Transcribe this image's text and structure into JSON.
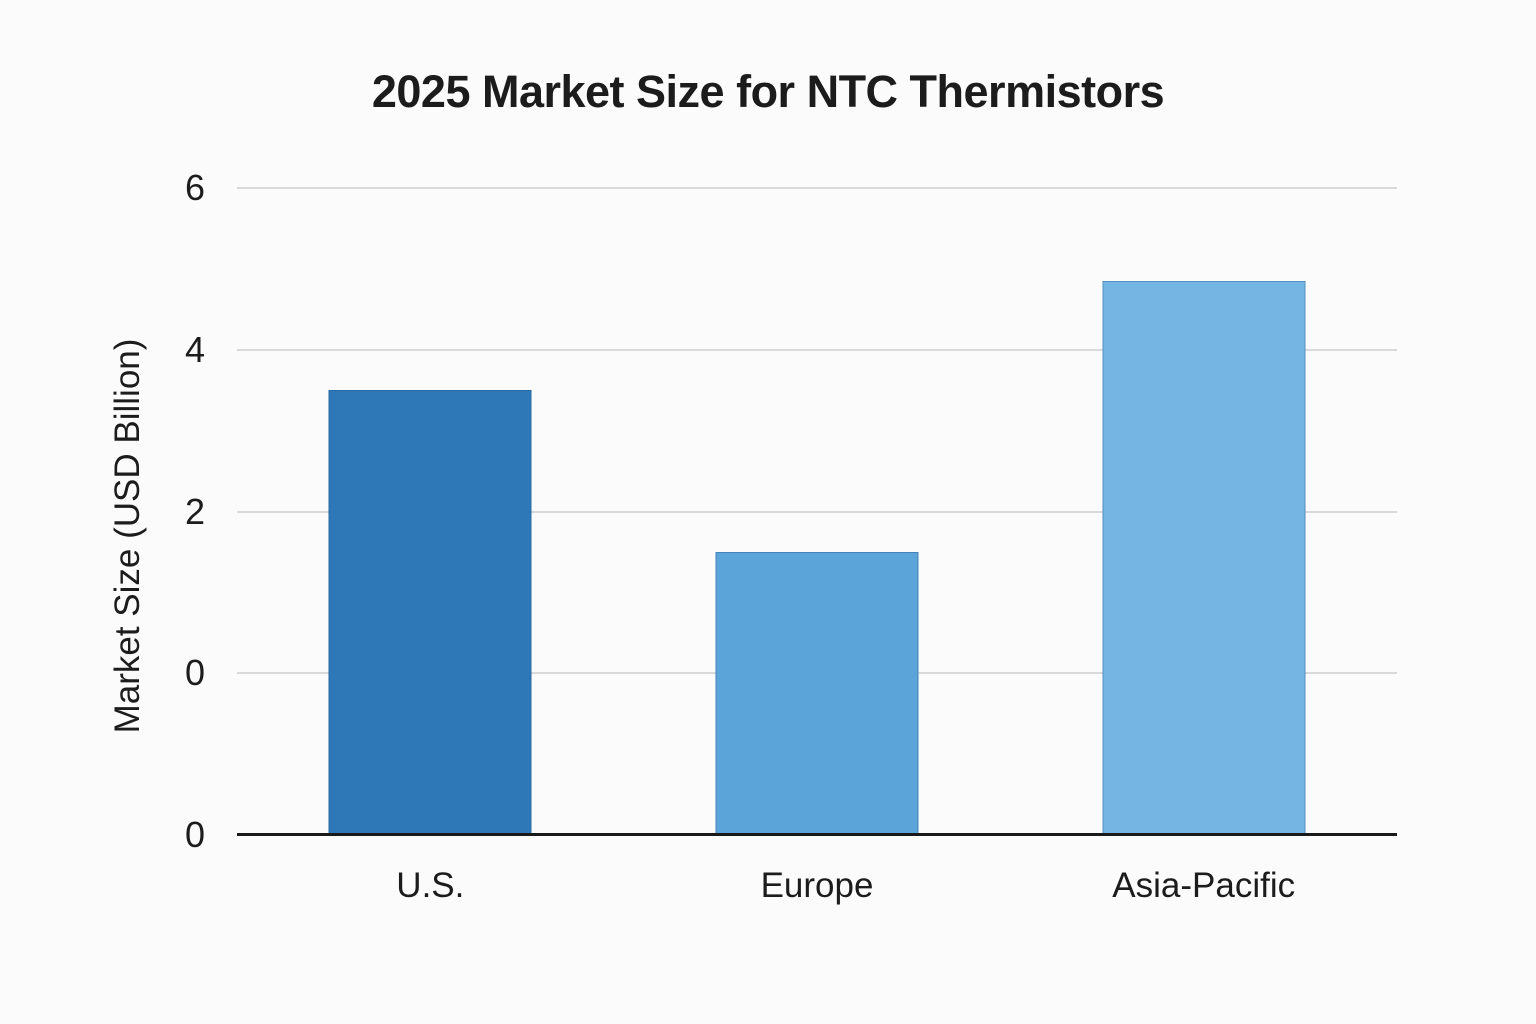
{
  "chart_data": {
    "type": "bar",
    "title": "2025 Market Size for NTC Thermistors",
    "xlabel": "",
    "ylabel": "Market Size (USD Billion)",
    "categories": [
      "U.S.",
      "Europe",
      "Asia-Pacific"
    ],
    "values": [
      3.5,
      1.5,
      4.85
    ],
    "y_ticks": [
      "6",
      "4",
      "2",
      "0",
      "0"
    ],
    "grid": "horizontal-only",
    "legend": "none",
    "axis_note": "y-axis shows a duplicate 0 tick: one at the value-zero gridline and one at the baseline; bars are drawn down to the baseline",
    "bar_colors": [
      "#2e78b8",
      "#5aa4da",
      "#74b5e4"
    ],
    "axis_line_color": "#1a1a1a",
    "gridline_color": "#d9d9d9",
    "layout": {
      "base_percent": 25,
      "per_unit_percent": 12.5
    }
  }
}
